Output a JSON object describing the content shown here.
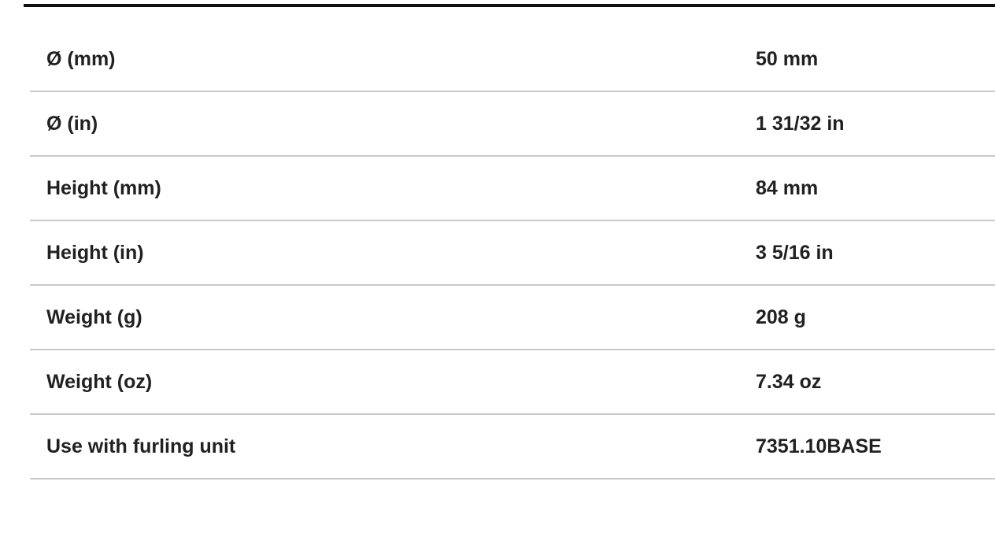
{
  "page": {
    "background_color": "#ffffff"
  },
  "top_bar": {
    "color": "#111111"
  },
  "spec_table": {
    "divider_color": "#c9c9c9",
    "text_color": "#212121",
    "rows": [
      {
        "label": "Ø (mm)",
        "value": "50 mm"
      },
      {
        "label": "Ø (in)",
        "value": "1 31/32 in"
      },
      {
        "label": "Height (mm)",
        "value": "84 mm"
      },
      {
        "label": "Height (in)",
        "value": "3 5/16 in"
      },
      {
        "label": "Weight (g)",
        "value": "208 g"
      },
      {
        "label": "Weight (oz)",
        "value": "7.34 oz"
      },
      {
        "label": "Use with furling unit",
        "value": "7351.10BASE"
      }
    ]
  }
}
